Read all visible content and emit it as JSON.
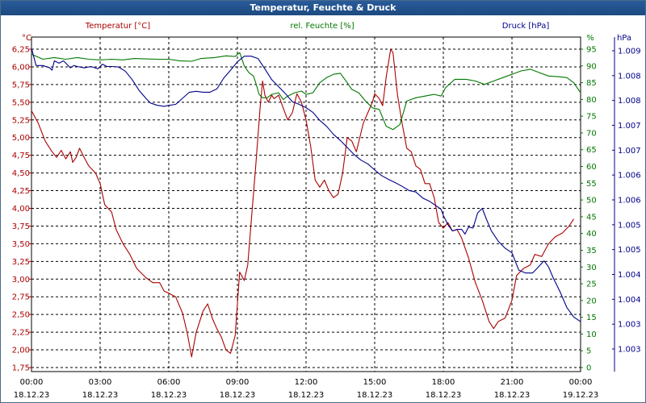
{
  "window": {
    "title": "Temperatur, Feuchte & Druck"
  },
  "colors": {
    "temp": "#aa0000",
    "hum": "#007700",
    "press": "#000088",
    "grid": "#000000",
    "frame": "#2a5c9a"
  },
  "chart_data": {
    "type": "line",
    "title": "Temperatur, Feuchte & Druck",
    "grid": true,
    "x_ticks": [
      {
        "time": "00:00",
        "date": "18.12.23"
      },
      {
        "time": "03:00",
        "date": "18.12.23"
      },
      {
        "time": "06:00",
        "date": "18.12.23"
      },
      {
        "time": "09:00",
        "date": "18.12.23"
      },
      {
        "time": "12:00",
        "date": "18.12.23"
      },
      {
        "time": "15:00",
        "date": "18.12.23"
      },
      {
        "time": "18:00",
        "date": "18.12.23"
      },
      {
        "time": "21:00",
        "date": "18.12.23"
      },
      {
        "time": "00:00",
        "date": "19.12.23"
      }
    ],
    "x_range_hours": [
      0,
      24
    ],
    "axes": {
      "temperature": {
        "label": "Temperatur [°C]",
        "unit": "°C",
        "range": [
          1.75,
          6.25
        ],
        "ticks": [
          "6,25",
          "6,00",
          "5,75",
          "5,50",
          "5,25",
          "5,00",
          "4,75",
          "4,50",
          "4,25",
          "4,00",
          "3,75",
          "3,50",
          "3,25",
          "3,00",
          "2,75",
          "2,50",
          "2,25",
          "2,00",
          "1,75"
        ]
      },
      "humidity": {
        "label": "rel. Feuchte [%]",
        "unit": "%",
        "range": [
          0,
          95
        ],
        "ticks": [
          "95",
          "90",
          "85",
          "80",
          "75",
          "70",
          "65",
          "60",
          "55",
          "50",
          "45",
          "40",
          "35",
          "30",
          "25",
          "20",
          "15",
          "10",
          "5",
          "0"
        ]
      },
      "pressure": {
        "label": "Druck [hPa]",
        "unit": "hPa",
        "range": [
          1.0025,
          1.0093
        ],
        "ticks": [
          "1.009",
          "1.008",
          "1.008",
          "1.007",
          "1.007",
          "1.006",
          "1.006",
          "1.005",
          "1.005",
          "1.004",
          "1.004",
          "1.003",
          "1.003"
        ]
      }
    },
    "series": [
      {
        "name": "Temperatur [°C]",
        "axis": "temperature",
        "points": [
          [
            0,
            5.38
          ],
          [
            0.3,
            5.2
          ],
          [
            0.6,
            4.95
          ],
          [
            0.9,
            4.8
          ],
          [
            1.1,
            4.72
          ],
          [
            1.3,
            4.82
          ],
          [
            1.5,
            4.7
          ],
          [
            1.7,
            4.8
          ],
          [
            1.8,
            4.65
          ],
          [
            1.95,
            4.72
          ],
          [
            2.1,
            4.85
          ],
          [
            2.3,
            4.72
          ],
          [
            2.5,
            4.6
          ],
          [
            2.8,
            4.5
          ],
          [
            3.0,
            4.35
          ],
          [
            3.2,
            4.05
          ],
          [
            3.5,
            3.95
          ],
          [
            3.7,
            3.7
          ],
          [
            4.0,
            3.5
          ],
          [
            4.3,
            3.35
          ],
          [
            4.6,
            3.15
          ],
          [
            5.0,
            3.02
          ],
          [
            5.3,
            2.95
          ],
          [
            5.6,
            2.95
          ],
          [
            5.8,
            2.83
          ],
          [
            6.0,
            2.8
          ],
          [
            6.3,
            2.75
          ],
          [
            6.6,
            2.52
          ],
          [
            6.8,
            2.25
          ],
          [
            7.0,
            1.9
          ],
          [
            7.2,
            2.25
          ],
          [
            7.5,
            2.55
          ],
          [
            7.7,
            2.65
          ],
          [
            7.9,
            2.45
          ],
          [
            8.1,
            2.3
          ],
          [
            8.3,
            2.18
          ],
          [
            8.5,
            2.0
          ],
          [
            8.7,
            1.95
          ],
          [
            8.9,
            2.2
          ],
          [
            9.1,
            3.1
          ],
          [
            9.3,
            2.98
          ],
          [
            9.45,
            3.2
          ],
          [
            9.6,
            3.8
          ],
          [
            9.8,
            4.6
          ],
          [
            10.0,
            5.45
          ],
          [
            10.1,
            5.8
          ],
          [
            10.2,
            5.6
          ],
          [
            10.35,
            5.5
          ],
          [
            10.5,
            5.6
          ],
          [
            10.6,
            5.55
          ],
          [
            10.8,
            5.6
          ],
          [
            11.0,
            5.42
          ],
          [
            11.2,
            5.25
          ],
          [
            11.4,
            5.35
          ],
          [
            11.6,
            5.62
          ],
          [
            11.8,
            5.5
          ],
          [
            12.0,
            5.25
          ],
          [
            12.2,
            4.88
          ],
          [
            12.4,
            4.4
          ],
          [
            12.6,
            4.3
          ],
          [
            12.8,
            4.4
          ],
          [
            13.0,
            4.25
          ],
          [
            13.2,
            4.15
          ],
          [
            13.4,
            4.2
          ],
          [
            13.6,
            4.5
          ],
          [
            13.8,
            5.0
          ],
          [
            14.0,
            4.95
          ],
          [
            14.2,
            4.8
          ],
          [
            14.5,
            5.2
          ],
          [
            14.7,
            5.35
          ],
          [
            14.9,
            5.5
          ],
          [
            15.0,
            5.62
          ],
          [
            15.2,
            5.55
          ],
          [
            15.35,
            5.45
          ],
          [
            15.5,
            5.85
          ],
          [
            15.7,
            6.25
          ],
          [
            15.8,
            6.2
          ],
          [
            16.0,
            5.6
          ],
          [
            16.2,
            5.2
          ],
          [
            16.4,
            4.85
          ],
          [
            16.6,
            4.8
          ],
          [
            16.8,
            4.6
          ],
          [
            17.0,
            4.55
          ],
          [
            17.2,
            4.35
          ],
          [
            17.4,
            4.35
          ],
          [
            17.6,
            4.15
          ],
          [
            17.8,
            3.8
          ],
          [
            18.0,
            3.72
          ],
          [
            18.2,
            3.8
          ],
          [
            18.4,
            3.68
          ],
          [
            18.6,
            3.7
          ],
          [
            18.8,
            3.58
          ],
          [
            19.1,
            3.3
          ],
          [
            19.4,
            2.95
          ],
          [
            19.7,
            2.7
          ],
          [
            20.0,
            2.4
          ],
          [
            20.2,
            2.3
          ],
          [
            20.4,
            2.4
          ],
          [
            20.7,
            2.45
          ],
          [
            21.0,
            2.7
          ],
          [
            21.2,
            3.05
          ],
          [
            21.5,
            3.15
          ],
          [
            21.8,
            3.2
          ],
          [
            22.0,
            3.35
          ],
          [
            22.3,
            3.32
          ],
          [
            22.6,
            3.5
          ],
          [
            22.9,
            3.6
          ],
          [
            23.2,
            3.65
          ],
          [
            23.5,
            3.75
          ],
          [
            23.7,
            3.85
          ]
        ]
      },
      {
        "name": "rel. Feuchte [%]",
        "axis": "humidity",
        "points": [
          [
            0,
            93.5
          ],
          [
            0.5,
            92
          ],
          [
            1.0,
            92.5
          ],
          [
            1.5,
            92
          ],
          [
            2.0,
            92.5
          ],
          [
            2.5,
            92
          ],
          [
            3.0,
            91.8
          ],
          [
            3.5,
            92
          ],
          [
            4.0,
            91.8
          ],
          [
            4.5,
            92.2
          ],
          [
            5.0,
            92.1
          ],
          [
            5.5,
            92
          ],
          [
            6.0,
            92
          ],
          [
            6.5,
            91.5
          ],
          [
            7.0,
            91.4
          ],
          [
            7.4,
            92.2
          ],
          [
            8.0,
            92.5
          ],
          [
            8.5,
            93
          ],
          [
            8.9,
            92.8
          ],
          [
            9.1,
            94
          ],
          [
            9.3,
            90
          ],
          [
            9.5,
            88
          ],
          [
            9.7,
            87
          ],
          [
            9.8,
            85
          ],
          [
            9.95,
            81.5
          ],
          [
            10.1,
            80.5
          ],
          [
            10.3,
            80.5
          ],
          [
            10.5,
            81.5
          ],
          [
            10.8,
            82
          ],
          [
            11.0,
            80
          ],
          [
            11.2,
            81
          ],
          [
            11.5,
            82
          ],
          [
            11.8,
            82.5
          ],
          [
            12.0,
            81.5
          ],
          [
            12.3,
            82
          ],
          [
            12.6,
            85
          ],
          [
            12.9,
            86.5
          ],
          [
            13.2,
            87.5
          ],
          [
            13.5,
            87.8
          ],
          [
            13.8,
            85
          ],
          [
            14.0,
            83
          ],
          [
            14.3,
            82
          ],
          [
            14.6,
            79.5
          ],
          [
            14.9,
            77.5
          ],
          [
            15.2,
            77
          ],
          [
            15.5,
            72
          ],
          [
            15.8,
            71
          ],
          [
            16.1,
            72.5
          ],
          [
            16.4,
            79.5
          ],
          [
            16.8,
            80.5
          ],
          [
            17.2,
            81
          ],
          [
            17.6,
            81.5
          ],
          [
            17.9,
            81
          ],
          [
            18.1,
            83.5
          ],
          [
            18.5,
            86
          ],
          [
            19.0,
            86
          ],
          [
            19.4,
            85.5
          ],
          [
            19.8,
            84.5
          ],
          [
            20.2,
            85.5
          ],
          [
            20.6,
            86.5
          ],
          [
            21.0,
            87.5
          ],
          [
            21.4,
            88.5
          ],
          [
            21.8,
            89
          ],
          [
            22.2,
            88
          ],
          [
            22.6,
            87
          ],
          [
            23.0,
            86.8
          ],
          [
            23.4,
            86.5
          ],
          [
            23.7,
            85
          ],
          [
            24.0,
            82
          ]
        ]
      },
      {
        "name": "Druck [hPa]",
        "axis": "pressure",
        "points": [
          [
            0,
            1.00932
          ],
          [
            0.2,
            1.00895
          ],
          [
            0.5,
            1.00895
          ],
          [
            0.8,
            1.0089
          ],
          [
            0.9,
            1.00885
          ],
          [
            1.0,
            1.00905
          ],
          [
            1.2,
            1.009
          ],
          [
            1.4,
            1.00905
          ],
          [
            1.6,
            1.00895
          ],
          [
            1.7,
            1.0089
          ],
          [
            1.85,
            1.00895
          ],
          [
            2.0,
            1.00893
          ],
          [
            2.3,
            1.0089
          ],
          [
            2.6,
            1.00893
          ],
          [
            2.9,
            1.00888
          ],
          [
            3.1,
            1.00898
          ],
          [
            3.3,
            1.00893
          ],
          [
            3.5,
            1.00893
          ],
          [
            3.8,
            1.00892
          ],
          [
            4.1,
            1.00883
          ],
          [
            4.4,
            1.00865
          ],
          [
            4.7,
            1.00842
          ],
          [
            5.0,
            1.00825
          ],
          [
            5.2,
            1.00815
          ],
          [
            5.5,
            1.0081
          ],
          [
            5.8,
            1.00808
          ],
          [
            6.0,
            1.0081
          ],
          [
            6.3,
            1.00812
          ],
          [
            6.6,
            1.00825
          ],
          [
            6.9,
            1.00838
          ],
          [
            7.2,
            1.0084
          ],
          [
            7.5,
            1.00838
          ],
          [
            7.8,
            1.00838
          ],
          [
            8.1,
            1.00845
          ],
          [
            8.4,
            1.00868
          ],
          [
            8.7,
            1.00885
          ],
          [
            9.0,
            1.00903
          ],
          [
            9.3,
            1.00915
          ],
          [
            9.6,
            1.00915
          ],
          [
            9.9,
            1.0091
          ],
          [
            10.2,
            1.00888
          ],
          [
            10.5,
            1.00865
          ],
          [
            10.8,
            1.0085
          ],
          [
            11.1,
            1.00835
          ],
          [
            11.4,
            1.00818
          ],
          [
            11.7,
            1.00812
          ],
          [
            12.0,
            1.00805
          ],
          [
            12.3,
            1.00795
          ],
          [
            12.6,
            1.00778
          ],
          [
            12.9,
            1.00765
          ],
          [
            13.2,
            1.00748
          ],
          [
            13.5,
            1.00735
          ],
          [
            13.8,
            1.0072
          ],
          [
            14.1,
            1.00705
          ],
          [
            14.4,
            1.00693
          ],
          [
            14.7,
            1.00685
          ],
          [
            15.0,
            1.00672
          ],
          [
            15.3,
            1.0066
          ],
          [
            15.6,
            1.00652
          ],
          [
            15.9,
            1.00645
          ],
          [
            16.2,
            1.00637
          ],
          [
            16.5,
            1.00628
          ],
          [
            16.8,
            1.00625
          ],
          [
            17.1,
            1.00612
          ],
          [
            17.4,
            1.00605
          ],
          [
            17.7,
            1.00595
          ],
          [
            17.9,
            1.00588
          ],
          [
            18.0,
            1.00575
          ],
          [
            18.2,
            1.00555
          ],
          [
            18.4,
            1.00542
          ],
          [
            18.6,
            1.00545
          ],
          [
            18.8,
            1.00545
          ],
          [
            18.95,
            1.00535
          ],
          [
            19.1,
            1.0055
          ],
          [
            19.3,
            1.00548
          ],
          [
            19.5,
            1.0058
          ],
          [
            19.7,
            1.0059
          ],
          [
            19.9,
            1.00565
          ],
          [
            20.1,
            1.00542
          ],
          [
            20.4,
            1.0052
          ],
          [
            20.7,
            1.00505
          ],
          [
            21.0,
            1.00495
          ],
          [
            21.3,
            1.00458
          ],
          [
            21.6,
            1.00452
          ],
          [
            21.9,
            1.00452
          ],
          [
            22.1,
            1.00462
          ],
          [
            22.4,
            1.00478
          ],
          [
            22.6,
            1.00465
          ],
          [
            22.8,
            1.00442
          ],
          [
            23.1,
            1.00412
          ],
          [
            23.4,
            1.00378
          ],
          [
            23.7,
            1.00358
          ],
          [
            24.0,
            1.00348
          ]
        ]
      }
    ]
  }
}
